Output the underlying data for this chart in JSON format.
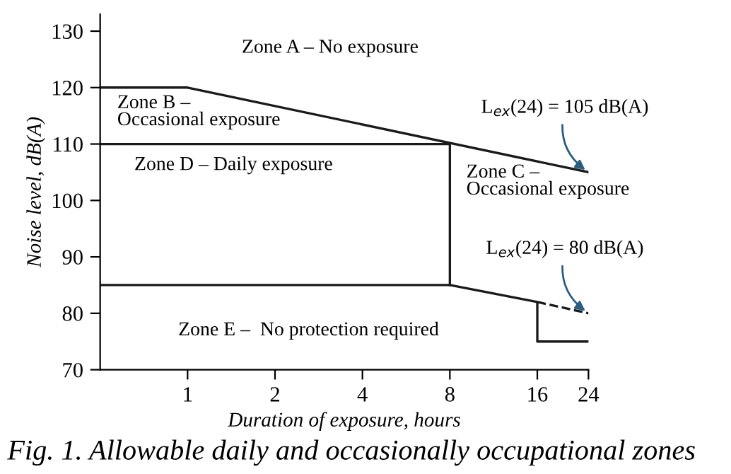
{
  "chart_data": {
    "type": "line",
    "xlabel": "Duration of exposure, hours",
    "ylabel": "Noise level, dB(A)",
    "log": "x",
    "xlim": [
      0.5,
      24
    ],
    "xticks": [
      1,
      2,
      4,
      8,
      16,
      24
    ],
    "ylim": [
      70,
      133
    ],
    "yticks": [
      70,
      80,
      90,
      100,
      110,
      120,
      130
    ],
    "grid": false,
    "marker": "none",
    "series": [
      {
        "color": "#1a1a1a",
        "x": [
          0.5,
          1,
          24
        ],
        "values": [
          120,
          120,
          105
        ],
        "line_style": "solid"
      },
      {
        "color": "#1a1a1a",
        "x": [
          0.5,
          8,
          8
        ],
        "values": [
          110,
          110,
          85
        ],
        "line_style": "solid"
      },
      {
        "color": "#1a1a1a",
        "x": [
          0.5,
          8,
          16,
          16,
          24
        ],
        "values": [
          85,
          85,
          82,
          75,
          75
        ],
        "line_style": "solid"
      },
      {
        "color": "#1a1a1a",
        "x": [
          16,
          24
        ],
        "values": [
          82,
          80
        ],
        "line_style": "dashed"
      }
    ],
    "annotations": [
      "Zone A – No exposure",
      "Zone B –\nOccasional exposure",
      "Zone D – Daily exposure",
      "Zone C –\nOccasional exposure",
      "Zone E –  No protection required",
      {
        "text": "L$_{ex}$(24) = 105 dB(A)",
        "x": 24,
        "y": 105
      },
      {
        "text": "L$_{ex}$(24) = 80 dB(A)",
        "x": 24,
        "y": 80
      },
      "Fig. 1. Allowable daily and occasionally occupational zones"
    ]
  }
}
